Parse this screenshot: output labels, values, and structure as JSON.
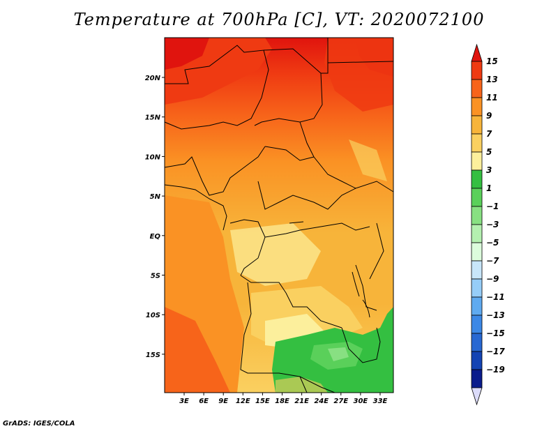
{
  "title": "Temperature at 700hPa [C], VT: 2020072100",
  "footer": "GrADS: IGES/COLA",
  "map": {
    "lon_labels": [
      "3E",
      "6E",
      "9E",
      "12E",
      "15E",
      "18E",
      "21E",
      "24E",
      "27E",
      "30E",
      "33E"
    ],
    "lat_labels": [
      "20N",
      "15N",
      "10N",
      "5N",
      "EQ",
      "5S",
      "10S",
      "15S"
    ],
    "lon_range": [
      0,
      35
    ],
    "lat_range": [
      -21.5,
      24.5
    ]
  },
  "colorbar": {
    "labels": [
      "15",
      "13",
      "11",
      "9",
      "7",
      "5",
      "3",
      "1",
      "−1",
      "−3",
      "−5",
      "−7",
      "−9",
      "−11",
      "−13",
      "−15",
      "−17",
      "−19"
    ],
    "colors": [
      "#e0140e",
      "#ef3a12",
      "#f7641a",
      "#fa9224",
      "#f7b43a",
      "#fad060",
      "#fcef9c",
      "#34bf41",
      "#5ad05a",
      "#88e082",
      "#b4f0b0",
      "#dcfcdc",
      "#c8e6fa",
      "#96cdf8",
      "#5faaf0",
      "#3c88e6",
      "#2868d2",
      "#1444b4",
      "#0a1c8c",
      "#dcdcfa"
    ]
  }
}
